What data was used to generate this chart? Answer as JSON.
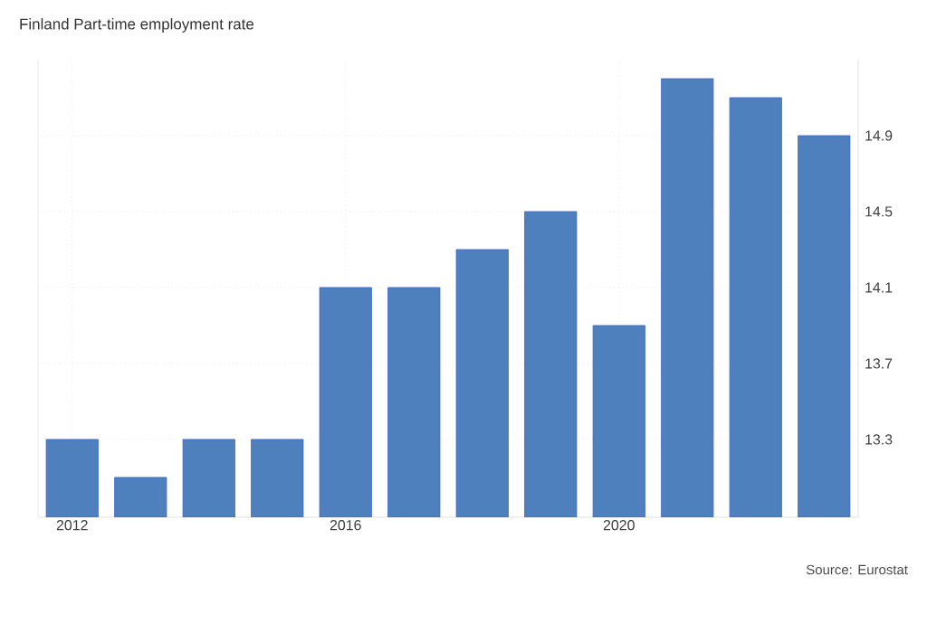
{
  "chart_data": {
    "type": "bar",
    "title": "Finland Part-time employment rate",
    "x": [
      2012,
      2013,
      2014,
      2015,
      2016,
      2017,
      2018,
      2019,
      2020,
      2021,
      2022,
      2023
    ],
    "values": [
      13.3,
      13.1,
      13.3,
      13.3,
      14.1,
      14.1,
      14.3,
      14.5,
      13.9,
      15.2,
      15.1,
      14.9
    ],
    "color": "#4e80bd",
    "xlim": [
      2011.5,
      2023.5
    ],
    "xticks": [
      2012,
      2016,
      2020
    ],
    "ylim": [
      12.89,
      15.3
    ],
    "yticks": [
      13.3,
      13.7,
      14.1,
      14.5,
      14.9
    ],
    "grid": true,
    "annotations": [
      "Source: Eurostat"
    ]
  }
}
